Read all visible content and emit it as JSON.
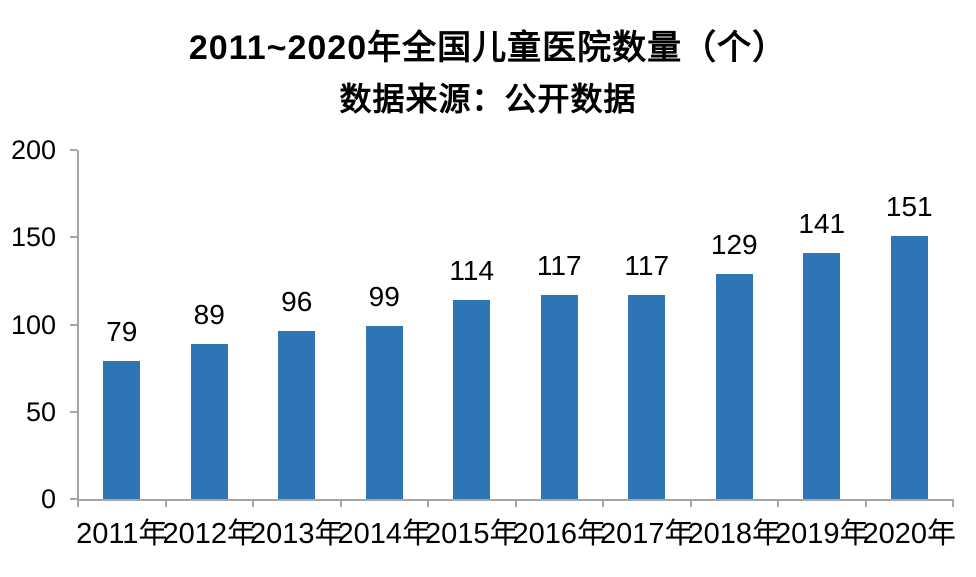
{
  "chart_data": {
    "type": "bar",
    "title": "2011~2020年全国儿童医院数量（个）",
    "subtitle": "数据来源：公开数据",
    "categories": [
      "2011年",
      "2012年",
      "2013年",
      "2014年",
      "2015年",
      "2016年",
      "2017年",
      "2018年",
      "2019年",
      "2020年"
    ],
    "values": [
      79,
      89,
      96,
      99,
      114,
      117,
      117,
      129,
      141,
      151
    ],
    "xlabel": "",
    "ylabel": "",
    "ylim": [
      0,
      200
    ],
    "y_ticks": [
      0,
      50,
      100,
      150,
      200
    ],
    "grid": "off",
    "legend": "none",
    "value_labels": "above-bars",
    "bar_color": "#2E75B6",
    "axis_color": "#A6A6A6",
    "text_color": "#000000",
    "background_color": "#FFFFFF"
  }
}
